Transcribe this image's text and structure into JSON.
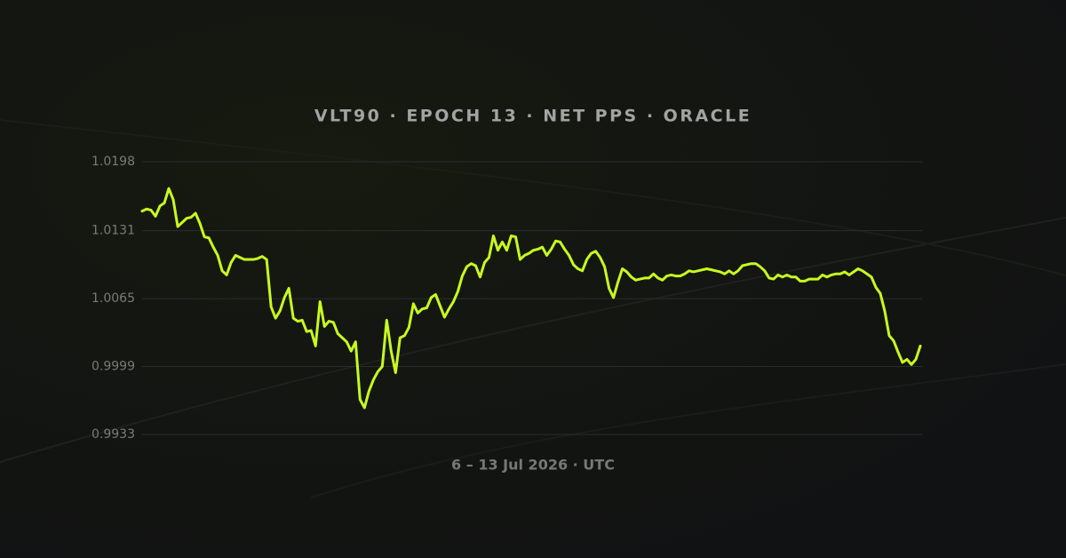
{
  "chart_data": {
    "type": "line",
    "title": "VLT90 · EPOCH 13 · NET PPS · ORACLE",
    "x_label": "6 – 13 Jul 2026 · UTC",
    "ylim": [
      0.9933,
      1.0198
    ],
    "yticks": [
      0.9933,
      0.9999,
      1.0065,
      1.0131,
      1.0198
    ],
    "grid": true,
    "color": "#c8fa1e",
    "values": [
      1.015,
      1.0152,
      1.0151,
      1.0145,
      1.0155,
      1.0158,
      1.0172,
      1.0161,
      1.0135,
      1.0139,
      1.0143,
      1.0144,
      1.0148,
      1.0138,
      1.0125,
      1.0124,
      1.0115,
      1.0107,
      1.0092,
      1.0088,
      1.01,
      1.0107,
      1.0105,
      1.0103,
      1.0103,
      1.0103,
      1.0104,
      1.0106,
      1.0103,
      1.0057,
      1.0046,
      1.0053,
      1.0066,
      1.0075,
      1.0046,
      1.0043,
      1.0044,
      1.0033,
      1.0034,
      1.0019,
      1.0062,
      1.0038,
      1.0043,
      1.0042,
      1.0031,
      1.0027,
      1.0023,
      1.0014,
      1.0023,
      0.9967,
      0.9959,
      0.9975,
      0.9986,
      0.9994,
      0.9999,
      1.0044,
      1.0014,
      0.9993,
      1.0027,
      1.0029,
      1.0037,
      1.006,
      1.0051,
      1.0055,
      1.0056,
      1.0066,
      1.0069,
      1.0058,
      1.0047,
      1.0055,
      1.0062,
      1.0072,
      1.0087,
      1.0096,
      1.0099,
      1.0097,
      1.0086,
      1.01,
      1.0105,
      1.0126,
      1.0112,
      1.012,
      1.0112,
      1.0126,
      1.0125,
      1.0103,
      1.0107,
      1.0109,
      1.0112,
      1.0113,
      1.0115,
      1.0107,
      1.0113,
      1.0121,
      1.012,
      1.0113,
      1.0107,
      1.0098,
      1.0094,
      1.0092,
      1.0103,
      1.0109,
      1.0111,
      1.0105,
      1.0096,
      1.0075,
      1.0066,
      1.0081,
      1.0094,
      1.0091,
      1.0086,
      1.0083,
      1.0084,
      1.0085,
      1.0085,
      1.0089,
      1.0085,
      1.0083,
      1.0087,
      1.0088,
      1.0087,
      1.0087,
      1.0089,
      1.0092,
      1.0091,
      1.0092,
      1.0093,
      1.0094,
      1.0093,
      1.0092,
      1.0091,
      1.0089,
      1.0092,
      1.0089,
      1.0092,
      1.0097,
      1.0098,
      1.0099,
      1.0099,
      1.0096,
      1.0092,
      1.0085,
      1.0084,
      1.0088,
      1.0086,
      1.0088,
      1.0086,
      1.0086,
      1.0082,
      1.0082,
      1.0084,
      1.0084,
      1.0084,
      1.0088,
      1.0086,
      1.0088,
      1.0089,
      1.0089,
      1.0091,
      1.0088,
      1.0091,
      1.0094,
      1.0092,
      1.0089,
      1.0086,
      1.0076,
      1.007,
      1.0053,
      1.0029,
      1.0024,
      1.0013,
      1.0003,
      1.0006,
      1.0001,
      1.0006,
      1.0019
    ]
  }
}
